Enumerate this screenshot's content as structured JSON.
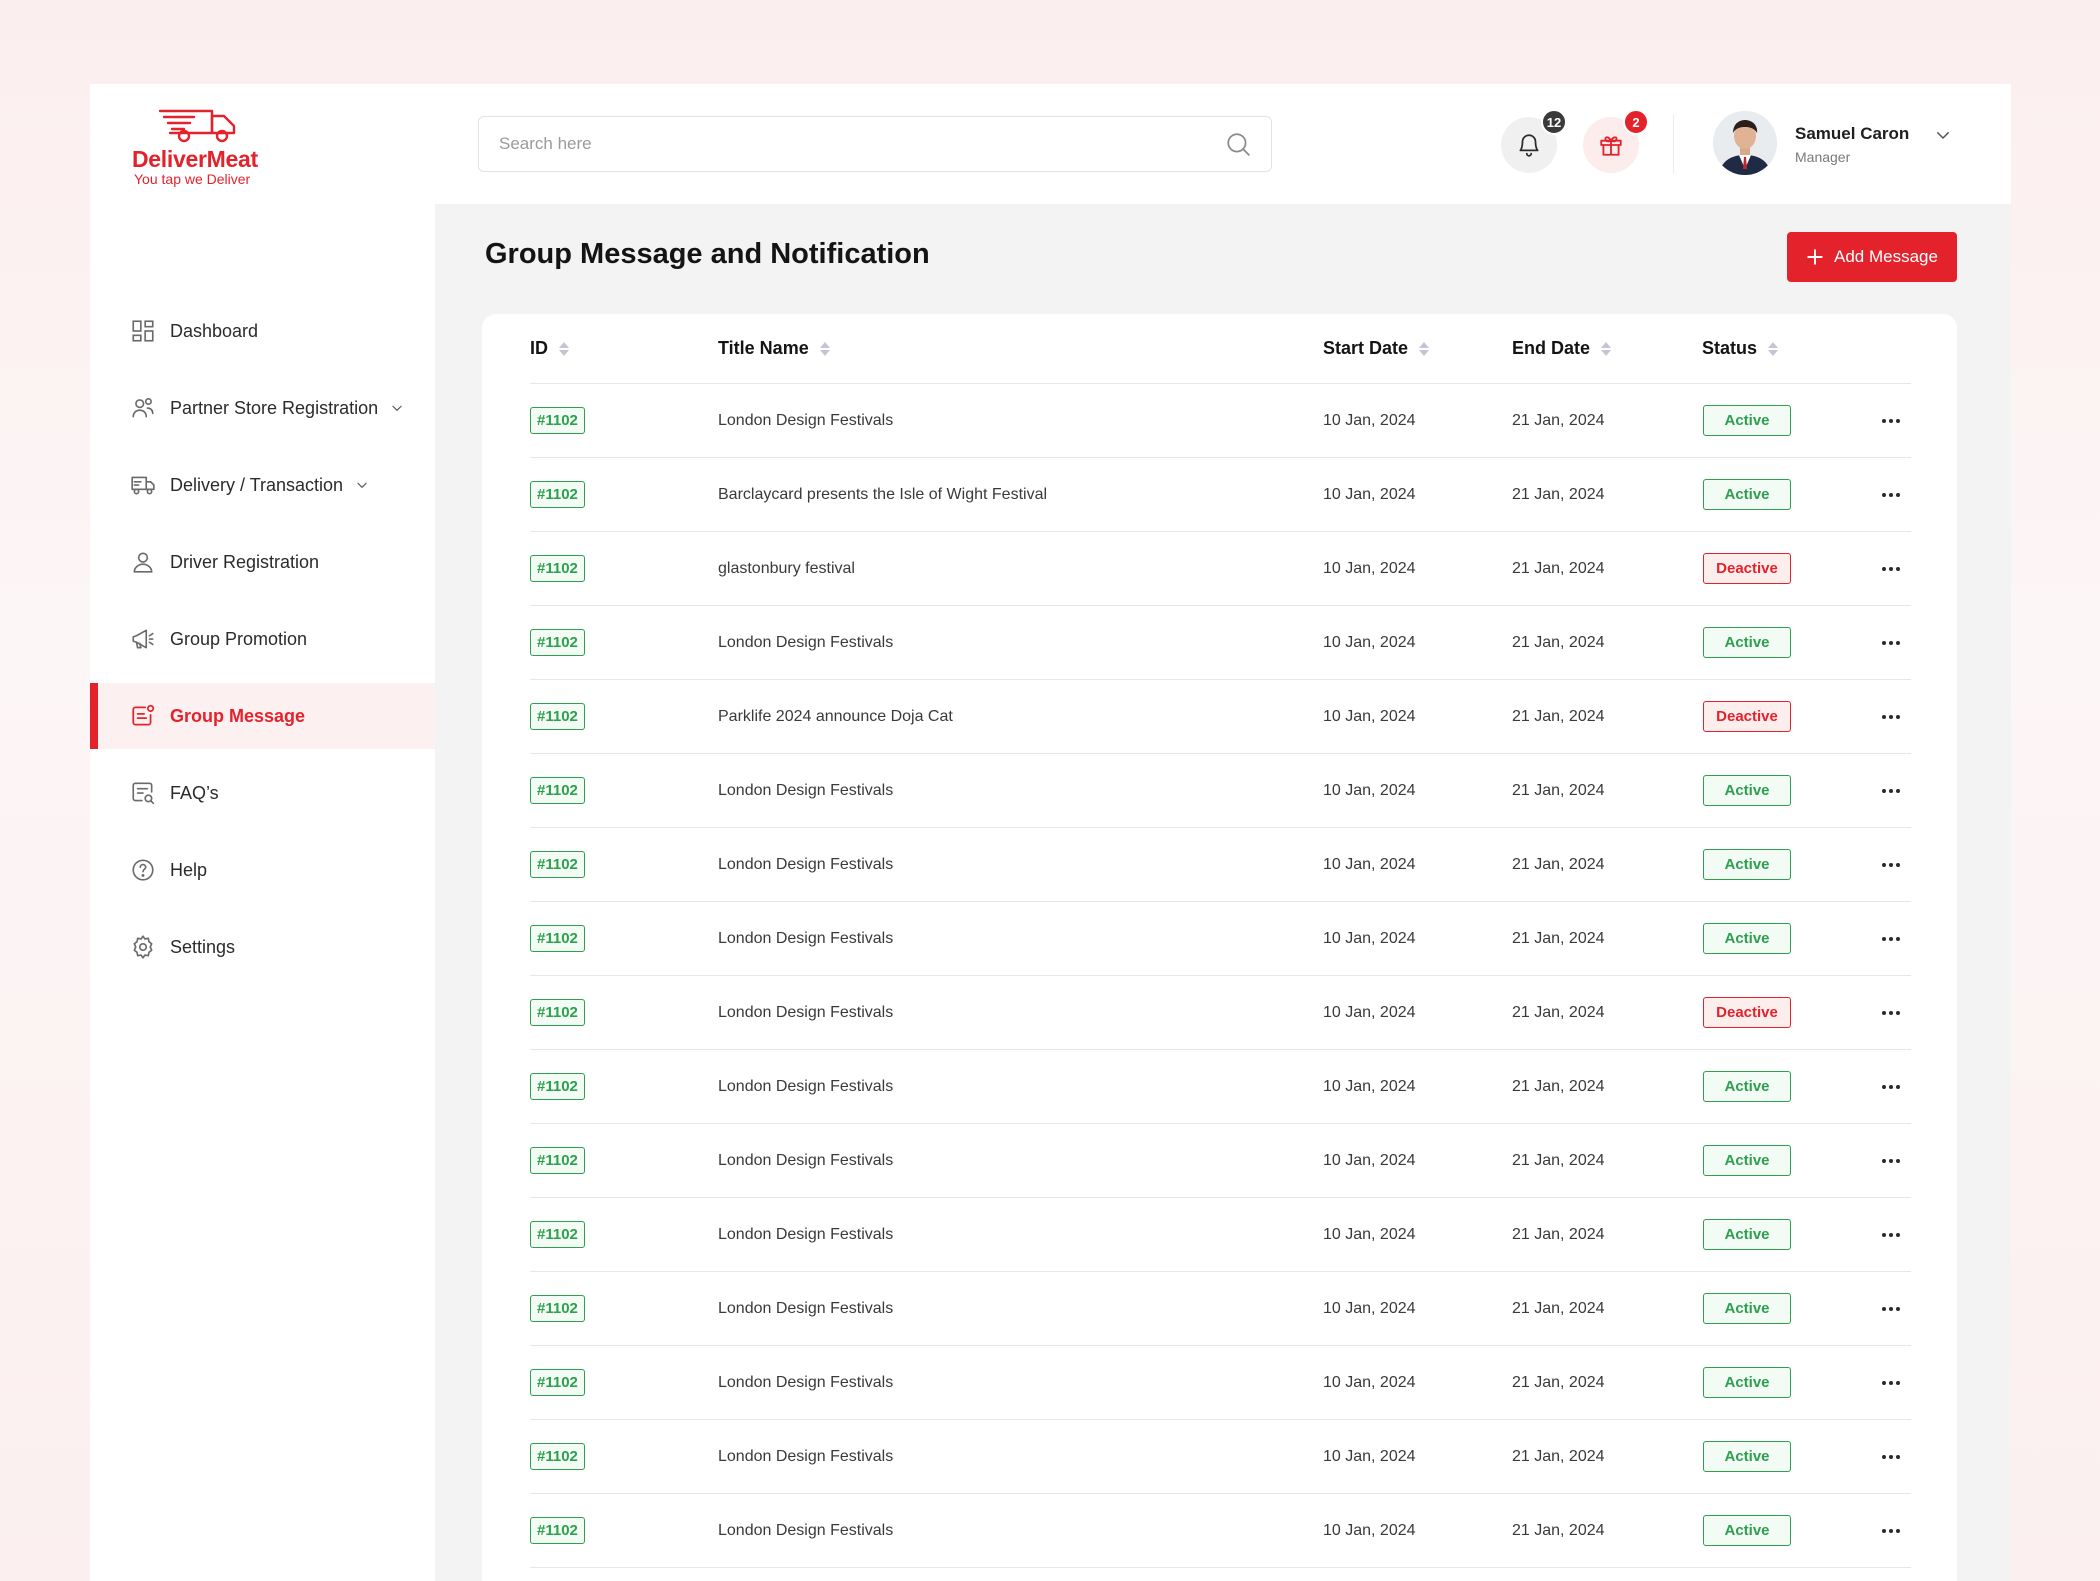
{
  "brand": {
    "name": "DeliverMeat",
    "tagline": "You tap we Deliver",
    "accent": "#e3222c"
  },
  "sidebar": {
    "items": [
      {
        "key": "dashboard",
        "label": "Dashboard",
        "icon": "dashboard-icon",
        "has_chevron": false,
        "active": false
      },
      {
        "key": "partner",
        "label": "Partner Store Registration",
        "icon": "users-icon",
        "has_chevron": true,
        "active": false
      },
      {
        "key": "delivery",
        "label": "Delivery / Transaction",
        "icon": "truck-icon",
        "has_chevron": true,
        "active": false
      },
      {
        "key": "driver",
        "label": "Driver Registration",
        "icon": "user-icon",
        "has_chevron": false,
        "active": false
      },
      {
        "key": "promo",
        "label": "Group Promotion",
        "icon": "megaphone-icon",
        "has_chevron": false,
        "active": false
      },
      {
        "key": "message",
        "label": "Group Message",
        "icon": "message-icon",
        "has_chevron": false,
        "active": true
      },
      {
        "key": "faq",
        "label": "FAQ’s",
        "icon": "faq-icon",
        "has_chevron": false,
        "active": false
      },
      {
        "key": "help",
        "label": "Help",
        "icon": "help-icon",
        "has_chevron": false,
        "active": false
      },
      {
        "key": "settings",
        "label": "Settings",
        "icon": "gear-icon",
        "has_chevron": false,
        "active": false
      }
    ]
  },
  "header": {
    "search": {
      "placeholder": "Search here",
      "value": ""
    },
    "notifications": {
      "count": "12"
    },
    "gifts": {
      "count": "2"
    },
    "user": {
      "name": "Samuel Caron",
      "role": "Manager"
    }
  },
  "page": {
    "title": "Group Message and Notification",
    "add_label": "Add Message"
  },
  "table": {
    "columns": {
      "id": "ID",
      "title": "Title Name",
      "start": "Start Date",
      "end": "End Date",
      "status": "Status"
    },
    "rows": [
      {
        "id": "#1102",
        "title": "London Design Festivals",
        "start": "10 Jan, 2024",
        "end": "21 Jan, 2024",
        "status": "Active"
      },
      {
        "id": "#1102",
        "title": "Barclaycard presents the Isle of Wight Festival",
        "start": "10 Jan, 2024",
        "end": "21 Jan, 2024",
        "status": "Active"
      },
      {
        "id": "#1102",
        "title": "glastonbury festival",
        "start": "10 Jan, 2024",
        "end": "21 Jan, 2024",
        "status": "Deactive"
      },
      {
        "id": "#1102",
        "title": "London Design Festivals",
        "start": "10 Jan, 2024",
        "end": "21 Jan, 2024",
        "status": "Active"
      },
      {
        "id": "#1102",
        "title": "Parklife 2024 announce Doja Cat",
        "start": "10 Jan, 2024",
        "end": "21 Jan, 2024",
        "status": "Deactive"
      },
      {
        "id": "#1102",
        "title": "London Design Festivals",
        "start": "10 Jan, 2024",
        "end": "21 Jan, 2024",
        "status": "Active"
      },
      {
        "id": "#1102",
        "title": "London Design Festivals",
        "start": "10 Jan, 2024",
        "end": "21 Jan, 2024",
        "status": "Active"
      },
      {
        "id": "#1102",
        "title": "London Design Festivals",
        "start": "10 Jan, 2024",
        "end": "21 Jan, 2024",
        "status": "Active"
      },
      {
        "id": "#1102",
        "title": "London Design Festivals",
        "start": "10 Jan, 2024",
        "end": "21 Jan, 2024",
        "status": "Deactive"
      },
      {
        "id": "#1102",
        "title": "London Design Festivals",
        "start": "10 Jan, 2024",
        "end": "21 Jan, 2024",
        "status": "Active"
      },
      {
        "id": "#1102",
        "title": "London Design Festivals",
        "start": "10 Jan, 2024",
        "end": "21 Jan, 2024",
        "status": "Active"
      },
      {
        "id": "#1102",
        "title": "London Design Festivals",
        "start": "10 Jan, 2024",
        "end": "21 Jan, 2024",
        "status": "Active"
      },
      {
        "id": "#1102",
        "title": "London Design Festivals",
        "start": "10 Jan, 2024",
        "end": "21 Jan, 2024",
        "status": "Active"
      },
      {
        "id": "#1102",
        "title": "London Design Festivals",
        "start": "10 Jan, 2024",
        "end": "21 Jan, 2024",
        "status": "Active"
      },
      {
        "id": "#1102",
        "title": "London Design Festivals",
        "start": "10 Jan, 2024",
        "end": "21 Jan, 2024",
        "status": "Active"
      },
      {
        "id": "#1102",
        "title": "London Design Festivals",
        "start": "10 Jan, 2024",
        "end": "21 Jan, 2024",
        "status": "Active"
      }
    ]
  },
  "colors": {
    "active": "#2e9e4f",
    "deactive": "#e3222c"
  }
}
